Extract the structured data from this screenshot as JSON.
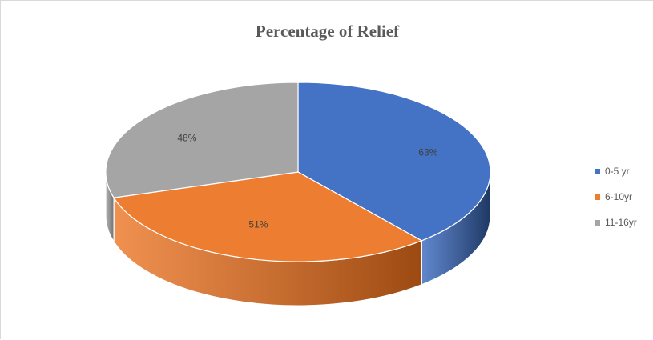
{
  "chart_data": {
    "type": "pie",
    "title": "Percentage of Relief",
    "categories": [
      "0-5 yr",
      "6-10yr",
      "11-16yr"
    ],
    "values": [
      63,
      51,
      48
    ],
    "data_labels": [
      "63%",
      "51%",
      "48%"
    ],
    "colors": [
      "#4472c4",
      "#ed7d31",
      "#a5a5a5"
    ],
    "side_colors": [
      "#1f3864",
      "#9c4a12",
      "#707070"
    ],
    "legend_position": "right",
    "style": "3d"
  }
}
